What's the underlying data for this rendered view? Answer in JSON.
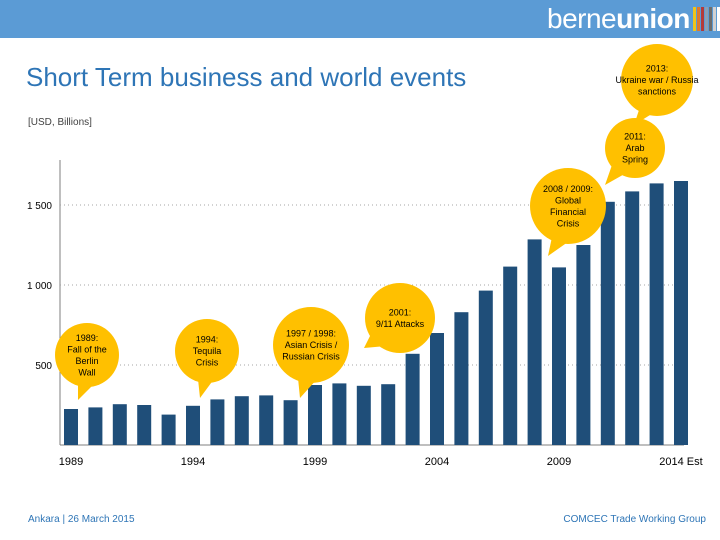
{
  "header": {
    "brand": {
      "part1": "berne",
      "part2": "union"
    },
    "bar_colors": [
      "#f0c419",
      "#e07a2b",
      "#b33a3a",
      "#8b9fb5",
      "#6d6d6d",
      "#d2d2d2",
      "#ffffff",
      "#7fb3d5"
    ]
  },
  "slide": {
    "title": "Short Term business and world events",
    "unit": "[USD, Billions]"
  },
  "footer": {
    "left": "Ankara | 26 March 2015",
    "right": "COMCEC Trade Working Group"
  },
  "colors": {
    "bar": "#1f4e79",
    "callout": "#ffc000",
    "title": "#2e75b6",
    "grid": "#a6a6a6"
  },
  "chart_data": {
    "type": "bar",
    "ylim": [
      0,
      1700
    ],
    "yticks": [
      500,
      1000,
      1500
    ],
    "ytick_labels": [
      "500",
      "1 000",
      "1 500"
    ],
    "grid": "horizontal dotted",
    "x_tick_labels": [
      "1989",
      "1994",
      "1999",
      "2004",
      "2009",
      "2014 Est"
    ],
    "x_tick_index": [
      0,
      5,
      10,
      15,
      20,
      25
    ],
    "categories": [
      "1989",
      "1990",
      "1991",
      "1992",
      "1993",
      "1994",
      "1995",
      "1996",
      "1997",
      "1998",
      "1999",
      "2000",
      "2001",
      "2002",
      "2003",
      "2004",
      "2005",
      "2006",
      "2007",
      "2008",
      "2009",
      "2010",
      "2011",
      "2012",
      "2013",
      "2014 Est"
    ],
    "values": [
      225,
      235,
      255,
      250,
      190,
      245,
      285,
      305,
      310,
      280,
      375,
      385,
      370,
      380,
      570,
      700,
      830,
      965,
      1115,
      1285,
      1110,
      1250,
      1520,
      1585,
      1635,
      1650
    ],
    "annotations": [
      {
        "lines": [
          "1989:",
          "Fall of the",
          "Berlin",
          "Wall"
        ]
      },
      {
        "lines": [
          "1994:",
          "Tequila",
          "Crisis"
        ]
      },
      {
        "lines": [
          "1997 / 1998:",
          "Asian Crisis /",
          "Russian Crisis"
        ]
      },
      {
        "lines": [
          "2001:",
          "9/11 Attacks"
        ]
      },
      {
        "lines": [
          "2008 / 2009:",
          "Global",
          "Financial",
          "Crisis"
        ]
      },
      {
        "lines": [
          "2011:",
          "Arab",
          "Spring"
        ]
      },
      {
        "lines": [
          "2013:",
          "Ukraine war / Russia",
          "sanctions"
        ]
      }
    ]
  }
}
